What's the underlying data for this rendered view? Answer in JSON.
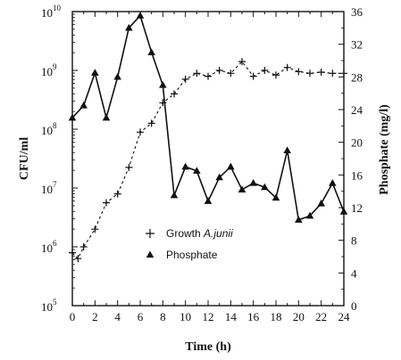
{
  "chart_data": {
    "type": "line",
    "xlabel": "Time (h)",
    "ylabel_left": "CFU/ml",
    "ylabel_right": "Phosphate (mg/l)",
    "x_ticks": [
      0,
      2,
      4,
      6,
      8,
      10,
      12,
      14,
      16,
      18,
      20,
      22,
      24
    ],
    "xlim": [
      0,
      24
    ],
    "y_left_scale": "log",
    "y_left_ticks": [
      {
        "exp": 5,
        "base": "10",
        "sup": "5"
      },
      {
        "exp": 6,
        "base": "10",
        "sup": "6"
      },
      {
        "exp": 7,
        "base": "10",
        "sup": "7"
      },
      {
        "exp": 8,
        "base": "10",
        "sup": "8"
      },
      {
        "exp": 9,
        "base": "10",
        "sup": "9"
      },
      {
        "exp": 10,
        "base": "10",
        "sup": "10"
      }
    ],
    "y_left_lim": [
      5,
      10
    ],
    "y_right_ticks": [
      0,
      4,
      8,
      12,
      16,
      20,
      24,
      28,
      32,
      36
    ],
    "y_right_lim": [
      0,
      36
    ],
    "legend": {
      "position": "center-bottom",
      "entries": [
        {
          "marker": "+",
          "label_prefix": "Growth ",
          "label_italic": "A.junii"
        },
        {
          "marker": "▲",
          "label_prefix": "Phosphate",
          "label_italic": ""
        }
      ]
    },
    "series": [
      {
        "name": "Growth A.junii",
        "axis": "left",
        "marker": "plus",
        "line": "dashed",
        "x": [
          0,
          0.5,
          1,
          2,
          3,
          4,
          5,
          6,
          7,
          8,
          9,
          10,
          11,
          12,
          13,
          14,
          15,
          16,
          17,
          18,
          19,
          20,
          21,
          22,
          23,
          24
        ],
        "y_log10": [
          5.9,
          5.8,
          6.0,
          6.3,
          6.75,
          6.9,
          7.35,
          7.95,
          8.1,
          8.45,
          8.6,
          8.85,
          8.95,
          8.9,
          9.0,
          8.95,
          9.15,
          8.9,
          9.0,
          8.92,
          9.05,
          8.98,
          8.95,
          8.97,
          8.95,
          8.95
        ]
      },
      {
        "name": "Phosphate",
        "axis": "right",
        "marker": "triangle",
        "line": "solid",
        "x": [
          0,
          1,
          2,
          3,
          4,
          5,
          6,
          7,
          8,
          9,
          10,
          11,
          12,
          13,
          14,
          15,
          16,
          17,
          18,
          19,
          20,
          21,
          22,
          23,
          24
        ],
        "y": [
          23,
          24.5,
          28.5,
          23,
          28,
          34,
          35.5,
          31,
          27,
          13.5,
          17,
          16.5,
          12.8,
          15.7,
          17,
          14.2,
          15,
          14.5,
          13.2,
          19,
          10.5,
          11,
          12.5,
          15,
          11.5
        ]
      }
    ]
  }
}
